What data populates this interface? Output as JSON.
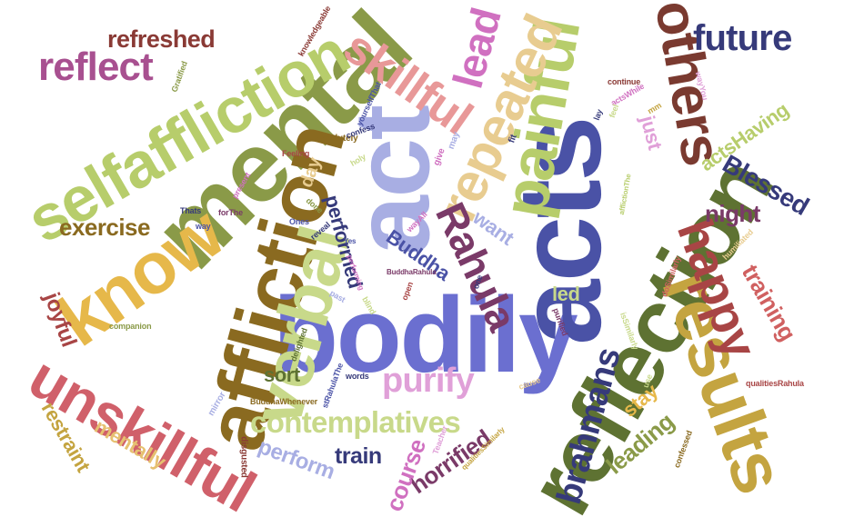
{
  "words": [
    {
      "id": "bodily",
      "text": "bodily",
      "color": "#6b6fd0"
    },
    {
      "id": "acts",
      "text": "acts",
      "color": "#4a52a6"
    },
    {
      "id": "act",
      "text": "act",
      "color": "#a8aee3"
    },
    {
      "id": "mental",
      "text": "mental",
      "color": "#8a9a48"
    },
    {
      "id": "reflection",
      "text": "reflection",
      "color": "#5e7232"
    },
    {
      "id": "affliction",
      "text": "affliction",
      "color": "#8a6a20"
    },
    {
      "id": "verbal",
      "text": "verbal",
      "color": "#c8d98a"
    },
    {
      "id": "selfaffliction",
      "text": "selfaffliction",
      "color": "#b7cd6b"
    },
    {
      "id": "results",
      "text": "results",
      "color": "#c4a440"
    },
    {
      "id": "painful",
      "text": "painful",
      "color": "#b7cd6b"
    },
    {
      "id": "repeated",
      "text": "repeated",
      "color": "#e8cc90"
    },
    {
      "id": "know",
      "text": "know",
      "color": "#e6b84a"
    },
    {
      "id": "unskillful",
      "text": "unskillful",
      "color": "#d0606a"
    },
    {
      "id": "others",
      "text": "others",
      "color": "#7a3a30"
    },
    {
      "id": "happy",
      "text": "happy",
      "color": "#a84545"
    },
    {
      "id": "skillful",
      "text": "skillful",
      "color": "#e89898"
    },
    {
      "id": "reflect",
      "text": "reflect",
      "color": "#a85090"
    },
    {
      "id": "future",
      "text": "future",
      "color": "#363a7a"
    },
    {
      "id": "lead",
      "text": "lead",
      "color": "#d070c0"
    },
    {
      "id": "refreshed",
      "text": "refreshed",
      "color": "#8a3a35"
    },
    {
      "id": "rahula",
      "text": "Rahula",
      "color": "#7a3a68"
    },
    {
      "id": "purify",
      "text": "purify",
      "color": "#e0a0d8"
    },
    {
      "id": "contemplatives",
      "text": "contemplatives",
      "color": "#c8d98a"
    },
    {
      "id": "brahmans",
      "text": "brahmans",
      "color": "#363a7a"
    },
    {
      "id": "blessed",
      "text": "Blessed",
      "color": "#363a7a"
    },
    {
      "id": "night",
      "text": "night",
      "color": "#7a3a68"
    },
    {
      "id": "exercise",
      "text": "exercise",
      "color": "#8a6a20"
    },
    {
      "id": "training",
      "text": "training",
      "color": "#d06060"
    },
    {
      "id": "joyful",
      "text": "joyful",
      "color": "#a84545"
    },
    {
      "id": "restraint",
      "text": "restraint",
      "color": "#c4a440"
    },
    {
      "id": "mentally",
      "text": "mentally",
      "color": "#e6c070"
    },
    {
      "id": "horrified",
      "text": "horrified",
      "color": "#7a3a68"
    },
    {
      "id": "course",
      "text": "course",
      "color": "#d070c0"
    },
    {
      "id": "perform",
      "text": "perform",
      "color": "#a8aee3"
    },
    {
      "id": "train",
      "text": "train",
      "color": "#363a7a"
    },
    {
      "id": "performed",
      "text": "performed",
      "color": "#363a7a"
    },
    {
      "id": "leading",
      "text": "leading",
      "color": "#8a9a48"
    },
    {
      "id": "actshaving",
      "text": "actsHaving",
      "color": "#b7cd6b"
    },
    {
      "id": "just",
      "text": "just",
      "color": "#e0a0d8"
    },
    {
      "id": "want",
      "text": "want",
      "color": "#a8aee3"
    },
    {
      "id": "buddha",
      "text": "Buddha",
      "color": "#4a52a6"
    },
    {
      "id": "day",
      "text": "day",
      "color": "#e8cc90"
    },
    {
      "id": "sort",
      "text": "sort",
      "color": "#5e7232"
    },
    {
      "id": "led",
      "text": "led",
      "color": "#c8d98a"
    },
    {
      "id": "stay",
      "text": "stay",
      "color": "#e6b84a"
    },
    {
      "id": "knowledgeable",
      "text": "knowledgeable",
      "color": "#8a3a35"
    },
    {
      "id": "gratified",
      "text": "Gratified",
      "color": "#8a9a48"
    },
    {
      "id": "yourselfthat",
      "text": "yourselfThat",
      "color": "#4a52a6"
    },
    {
      "id": "absolutely",
      "text": "absolutely",
      "color": "#8a6a20"
    },
    {
      "id": "confess",
      "text": "confess",
      "color": "#363a7a"
    },
    {
      "id": "feeling",
      "text": "Feeling",
      "color": "#a84545"
    },
    {
      "id": "present",
      "text": "present",
      "color": "#d070c0"
    },
    {
      "id": "forthe",
      "text": "forThe",
      "color": "#7a3a68"
    },
    {
      "id": "thats",
      "text": "Thats",
      "color": "#363a7a"
    },
    {
      "id": "way",
      "text": "way",
      "color": "#4a52a6"
    },
    {
      "id": "companion",
      "text": "companion",
      "color": "#8a9a48"
    },
    {
      "id": "mirror",
      "text": "mirror",
      "color": "#a8aee3"
    },
    {
      "id": "delighted",
      "text": "delighted",
      "color": "#5e7232"
    },
    {
      "id": "words",
      "text": "words",
      "color": "#363a7a"
    },
    {
      "id": "buddhawhenever",
      "text": "BuddhaWhenever",
      "color": "#8a6a20"
    },
    {
      "id": "strahulathe",
      "text": "stRahulaThe",
      "color": "#4a52a6"
    },
    {
      "id": "disgusted",
      "text": "disgusted",
      "color": "#8a3a35"
    },
    {
      "id": "teacher",
      "text": "Teacher",
      "color": "#e0a0d8"
    },
    {
      "id": "qualitiessimilarly",
      "text": "qualitiesSimilarly",
      "color": "#c4a440"
    },
    {
      "id": "qualitiesrahula",
      "text": "qualitiesRahula",
      "color": "#a84545"
    },
    {
      "id": "cause",
      "text": "cause",
      "color": "#e8cc90"
    },
    {
      "id": "confessed",
      "text": "confessed",
      "color": "#8a6a20"
    },
    {
      "id": "humiliated",
      "text": "humiliated",
      "color": "#e8cc90"
    },
    {
      "id": "dosimilarly",
      "text": "doSimilarly",
      "color": "#d06060"
    },
    {
      "id": "issimilarly",
      "text": "isSimilarly",
      "color": "#c8d98a"
    },
    {
      "id": "purified",
      "text": "purified",
      "color": "#7a3a68"
    },
    {
      "id": "wayyou",
      "text": "wayYou",
      "color": "#e0a0d8"
    },
    {
      "id": "continue",
      "text": "continue",
      "color": "#8a3a35"
    },
    {
      "id": "actswhile",
      "text": "actsWhile",
      "color": "#d070c0"
    },
    {
      "id": "lay",
      "text": "lay",
      "color": "#363a7a"
    },
    {
      "id": "feel",
      "text": "feel",
      "color": "#c8d98a"
    },
    {
      "id": "afflictionthe",
      "text": "afflictionThe",
      "color": "#b7cd6b"
    },
    {
      "id": "fit",
      "text": "fit",
      "color": "#363a7a"
    },
    {
      "id": "give",
      "text": "give",
      "color": "#d070c0"
    },
    {
      "id": "may",
      "text": "may",
      "color": "#a8aee3"
    },
    {
      "id": "buddharahula",
      "text": "BuddhaRahula",
      "color": "#7a3a68"
    },
    {
      "id": "open",
      "text": "open",
      "color": "#a84545"
    },
    {
      "id": "wayall",
      "text": "wayAll",
      "color": "#d070c0"
    },
    {
      "id": "reveal",
      "text": "reveal",
      "color": "#363a7a"
    },
    {
      "id": "ones",
      "text": "Ones",
      "color": "#4a52a6"
    },
    {
      "id": "done",
      "text": "done",
      "color": "#8a9a48"
    },
    {
      "id": "yes",
      "text": "Yes",
      "color": "#4a52a6"
    },
    {
      "id": "past",
      "text": "past",
      "color": "#a8aee3"
    },
    {
      "id": "performing",
      "text": "performing",
      "color": "#d070c0"
    },
    {
      "id": "blind",
      "text": "blind",
      "color": "#c8d98a"
    },
    {
      "id": "holy",
      "text": "holy",
      "color": "#c8d98a"
    },
    {
      "id": "one",
      "text": "one",
      "color": "#363a7a"
    },
    {
      "id": "use",
      "text": "use",
      "color": "#c8d98a"
    },
    {
      "id": "mm",
      "text": "mm",
      "color": "#c4a440"
    }
  ]
}
